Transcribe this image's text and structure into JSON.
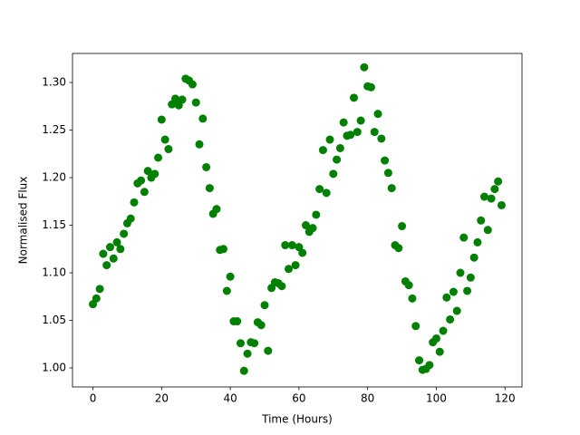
{
  "chart_data": {
    "type": "scatter",
    "xlabel": "Time (Hours)",
    "ylabel": "Normalised Flux",
    "color": "#008000",
    "x": [
      0,
      1,
      2,
      3,
      4,
      5,
      6,
      7,
      8,
      9,
      10,
      11,
      12,
      13,
      14,
      15,
      16,
      17,
      18,
      19,
      20,
      21,
      22,
      23,
      24,
      25,
      26,
      27,
      28,
      29,
      30,
      31,
      32,
      33,
      34,
      35,
      36,
      37,
      38,
      39,
      40,
      41,
      42,
      43,
      44,
      45,
      46,
      47,
      48,
      49,
      50,
      51,
      52,
      53,
      54,
      55,
      56,
      57,
      58,
      59,
      60,
      61,
      62,
      63,
      64,
      65,
      66,
      67,
      68,
      69,
      70,
      71,
      72,
      73,
      74,
      75,
      76,
      77,
      78,
      79,
      80,
      81,
      82,
      83,
      84,
      85,
      86,
      87,
      88,
      89,
      90,
      91,
      92,
      93,
      94,
      95,
      96,
      97,
      98,
      99,
      100,
      101,
      102,
      103,
      104,
      105,
      106,
      107,
      108,
      109,
      110,
      111,
      112,
      113,
      114,
      115,
      116,
      117,
      118,
      119
    ],
    "values": [
      1.067,
      1.073,
      1.083,
      1.12,
      1.108,
      1.127,
      1.115,
      1.132,
      1.125,
      1.141,
      1.152,
      1.157,
      1.174,
      1.194,
      1.197,
      1.185,
      1.207,
      1.2,
      1.204,
      1.221,
      1.261,
      1.24,
      1.23,
      1.277,
      1.283,
      1.276,
      1.282,
      1.304,
      1.302,
      1.298,
      1.279,
      1.235,
      1.262,
      1.211,
      1.189,
      1.162,
      1.167,
      1.124,
      1.125,
      1.081,
      1.096,
      1.049,
      1.049,
      1.026,
      0.997,
      1.015,
      1.027,
      1.026,
      1.048,
      1.045,
      1.066,
      1.018,
      1.084,
      1.09,
      1.089,
      1.086,
      1.129,
      1.104,
      1.129,
      1.108,
      1.127,
      1.121,
      1.15,
      1.143,
      1.147,
      1.161,
      1.188,
      1.229,
      1.184,
      1.24,
      1.204,
      1.219,
      1.231,
      1.258,
      1.244,
      1.245,
      1.284,
      1.248,
      1.26,
      1.316,
      1.296,
      1.295,
      1.248,
      1.267,
      1.241,
      1.218,
      1.205,
      1.189,
      1.129,
      1.126,
      1.149,
      1.091,
      1.087,
      1.073,
      1.044,
      1.008,
      0.998,
      0.999,
      1.003,
      1.027,
      1.031,
      1.017,
      1.039,
      1.074,
      1.051,
      1.08,
      1.06,
      1.1,
      1.137,
      1.081,
      1.095,
      1.116,
      1.132,
      1.155,
      1.18,
      1.145,
      1.178,
      1.188,
      1.196,
      1.171
    ],
    "xlim": [
      -5.95,
      124.95
    ],
    "xticks": [
      0,
      20,
      40,
      60,
      80,
      100,
      120
    ],
    "ylim": [
      0.98,
      1.3305
    ],
    "yticks": [
      {
        "value": 1.0,
        "label": "1.00"
      },
      1.05,
      {
        "value": 1.1,
        "label": "1.10"
      },
      1.15,
      {
        "value": 1.2,
        "label": "1.20"
      },
      1.25,
      {
        "value": 1.3,
        "label": "1.30"
      }
    ]
  }
}
